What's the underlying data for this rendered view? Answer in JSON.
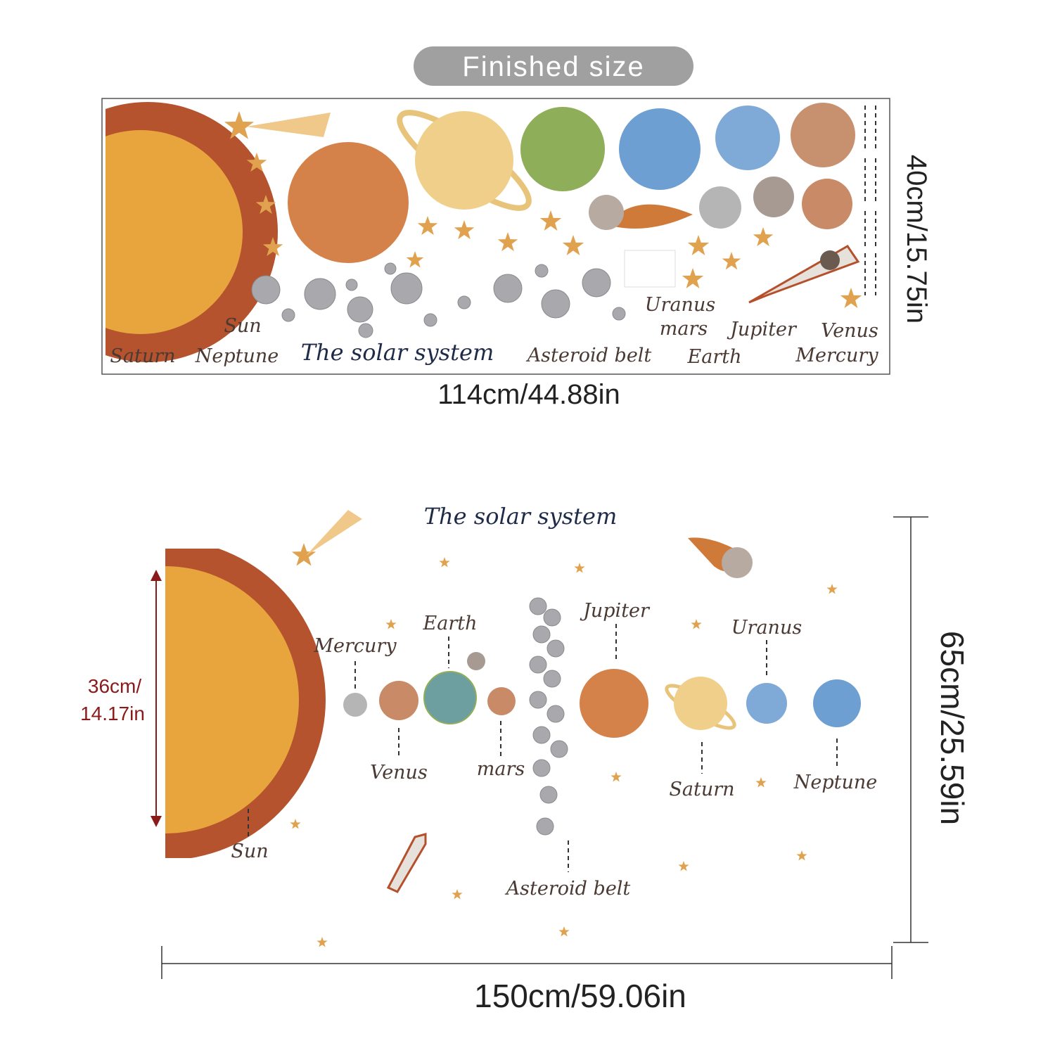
{
  "header": {
    "title": "Finished size"
  },
  "sheet": {
    "width": "114cm/44.88in",
    "height": "40cm/15.75in",
    "labels": {
      "sun": "Sun",
      "saturn": "Saturn",
      "neptune": "Neptune",
      "title": "The solar system",
      "asteroid_belt": "Asteroid belt",
      "uranus": "Uranus",
      "mars": "mars",
      "jupiter": "Jupiter",
      "venus": "Venus",
      "earth": "Earth",
      "mercury": "Mercury"
    }
  },
  "layout": {
    "title": "The solar system",
    "width": "150cm/59.06in",
    "height": "65cm/25.59in",
    "sun_height": [
      "36cm/",
      "14.17in"
    ],
    "labels": {
      "mercury": "Mercury",
      "earth": "Earth",
      "jupiter": "Jupiter",
      "uranus": "Uranus",
      "venus": "Venus",
      "mars": "mars",
      "saturn": "Saturn",
      "neptune": "Neptune",
      "sun": "Sun",
      "asteroid_belt": "Asteroid belt"
    }
  }
}
